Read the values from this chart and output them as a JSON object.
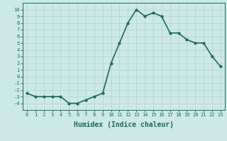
{
  "x": [
    0,
    1,
    2,
    3,
    4,
    5,
    6,
    7,
    8,
    9,
    10,
    11,
    12,
    13,
    14,
    15,
    16,
    17,
    18,
    19,
    20,
    21,
    22,
    23
  ],
  "y": [
    -2.5,
    -3.0,
    -3.0,
    -3.0,
    -3.0,
    -4.0,
    -4.0,
    -3.5,
    -3.0,
    -2.5,
    2.0,
    5.0,
    8.0,
    10.0,
    9.0,
    9.5,
    9.0,
    6.5,
    6.5,
    5.5,
    5.0,
    5.0,
    3.0,
    1.5
  ],
  "line_color": "#1a6b5e",
  "marker": "o",
  "marker_size": 2,
  "bg_color": "#cce9e5",
  "grid_color": "#b8d8d4",
  "xlabel": "Humidex (Indice chaleur)",
  "xlim": [
    -0.5,
    23.5
  ],
  "ylim": [
    -5,
    11
  ],
  "xticks": [
    0,
    1,
    2,
    3,
    4,
    5,
    6,
    7,
    8,
    9,
    10,
    11,
    12,
    13,
    14,
    15,
    16,
    17,
    18,
    19,
    20,
    21,
    22,
    23
  ],
  "yticks": [
    -4,
    -3,
    -2,
    -1,
    0,
    1,
    2,
    3,
    4,
    5,
    6,
    7,
    8,
    9,
    10
  ],
  "tick_fontsize": 5.0,
  "label_fontsize": 7.0,
  "linewidth": 1.2
}
